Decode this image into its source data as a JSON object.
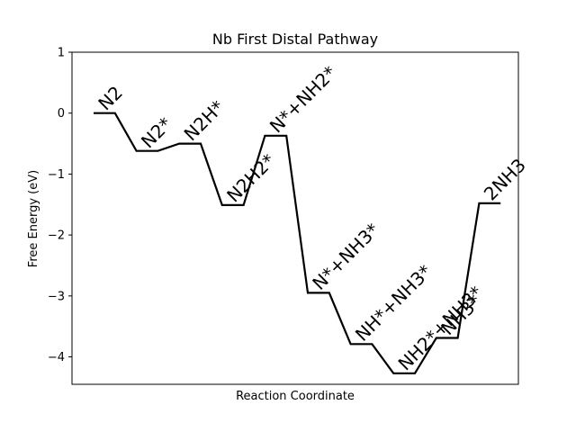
{
  "chart_data": {
    "type": "line",
    "title": "Nb First Distal Pathway",
    "xlabel": "Reaction Coordinate",
    "ylabel": "Free Energy (eV)",
    "ylim": [
      -4.45,
      1.0
    ],
    "yticks": [
      1,
      0,
      -1,
      -2,
      -3,
      -4
    ],
    "ytick_labels": [
      "1",
      "0",
      "−1",
      "−2",
      "−3",
      "−4"
    ],
    "xticks": [],
    "grid": false,
    "legend": "none",
    "line_color": "#000000",
    "states": [
      {
        "label": "N2",
        "energy": 0.0
      },
      {
        "label": "N2*",
        "energy": -0.62
      },
      {
        "label": "N2H*",
        "energy": -0.5
      },
      {
        "label": "N2H2*",
        "energy": -1.51
      },
      {
        "label": "N*+NH2*",
        "energy": -0.37
      },
      {
        "label": "N*+NH3*",
        "energy": -2.95
      },
      {
        "label": "NH*+NH3*",
        "energy": -3.79
      },
      {
        "label": "NH2*+NH3*",
        "energy": -4.27
      },
      {
        "label": "NH3*",
        "energy": -3.69
      },
      {
        "label": "2NH3",
        "energy": -1.48
      }
    ]
  }
}
